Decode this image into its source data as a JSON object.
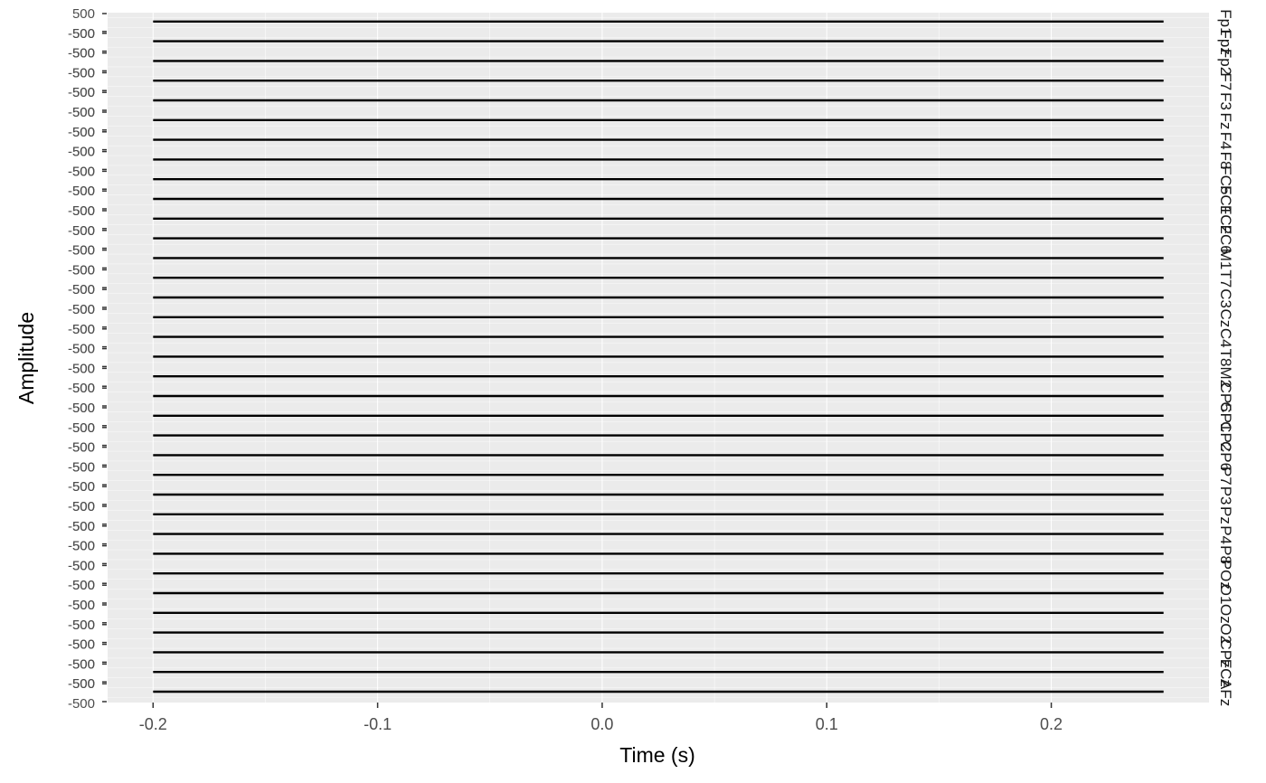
{
  "chart_data": {
    "type": "line",
    "title": "",
    "xlabel": "Time (s)",
    "ylabel": "Amplitude",
    "x_ticks": [
      "-0.2",
      "-0.1",
      "0.0",
      "0.1",
      "0.2"
    ],
    "x_tick_values": [
      -0.2,
      -0.1,
      0.0,
      0.1,
      0.2
    ],
    "xlim": [
      -0.2,
      0.25
    ],
    "ylim_per_facet": [
      -500,
      500
    ],
    "y_tick_labels": [
      "-500",
      "500"
    ],
    "grid": true,
    "facet_layout": "stacked rows, one channel per row, labels on right",
    "channels": [
      "Fp1",
      "Fpz",
      "Fp2",
      "F7",
      "F3",
      "Fz",
      "F4",
      "F8",
      "FC5",
      "FC1",
      "FC2",
      "FC6",
      "M1",
      "T7",
      "C3",
      "Cz",
      "C4",
      "T8",
      "M2",
      "CP5",
      "CP1",
      "CP2",
      "CP6",
      "P7",
      "P3",
      "Pz",
      "P4",
      "P8",
      "POz",
      "O1",
      "Oz",
      "O2",
      "CPz",
      "FCz",
      "AFz"
    ],
    "series": {
      "x": [
        -0.2,
        0.25
      ],
      "y": [
        0,
        0
      ],
      "note_value": 0
    },
    "colors": {
      "line": "#000000",
      "panel": "#ebebeb",
      "grid": "#ffffff"
    }
  }
}
